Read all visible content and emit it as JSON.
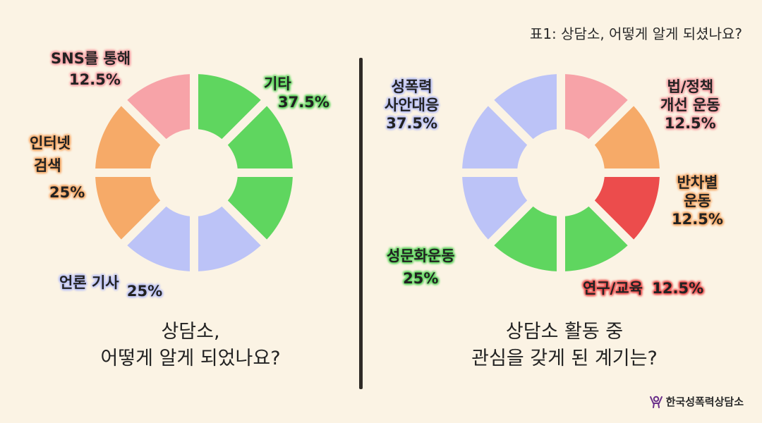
{
  "caption": "표1: 상담소, 어떻게 알게 되셨나요?",
  "logo": {
    "text": "한국성폭력상담소",
    "icon": "person-arms-up-icon",
    "color": "#6a2f8a"
  },
  "chart_data": [
    {
      "type": "pie",
      "title": [
        "상담소,",
        "어떻게 알게 되었나요?"
      ],
      "slices": [
        {
          "label": [
            "기타"
          ],
          "value": 37.5,
          "value_text": "37.5%",
          "color": "#5fd65f"
        },
        {
          "label": [
            "언론 기사"
          ],
          "value": 25,
          "value_text": "25%",
          "color": "#bcc3f7"
        },
        {
          "label": [
            "인터넷",
            "검색"
          ],
          "value": 25,
          "value_text": "25%",
          "color": "#f6aa68"
        },
        {
          "label": [
            "SNS를 통해"
          ],
          "value": 12.5,
          "value_text": "12.5%",
          "color": "#f7a3a8"
        }
      ]
    },
    {
      "type": "pie",
      "title": [
        "상담소 활동 중",
        "관심을 갖게 된 계기는?"
      ],
      "slices": [
        {
          "label": [
            "법/정책",
            "개선 운동"
          ],
          "value": 12.5,
          "value_text": "12.5%",
          "color": "#f7a3a8"
        },
        {
          "label": [
            "반차별",
            "운동"
          ],
          "value": 12.5,
          "value_text": "12.5%",
          "color": "#f6aa68"
        },
        {
          "label": [
            "연구/교육"
          ],
          "value": 12.5,
          "value_text": "12.5%",
          "color": "#ec4c4c"
        },
        {
          "label": [
            "성문화운동"
          ],
          "value": 25,
          "value_text": "25%",
          "color": "#5fd65f"
        },
        {
          "label": [
            "성폭력",
            "사안대응"
          ],
          "value": 37.5,
          "value_text": "37.5%",
          "color": "#bcc3f7"
        }
      ]
    }
  ]
}
